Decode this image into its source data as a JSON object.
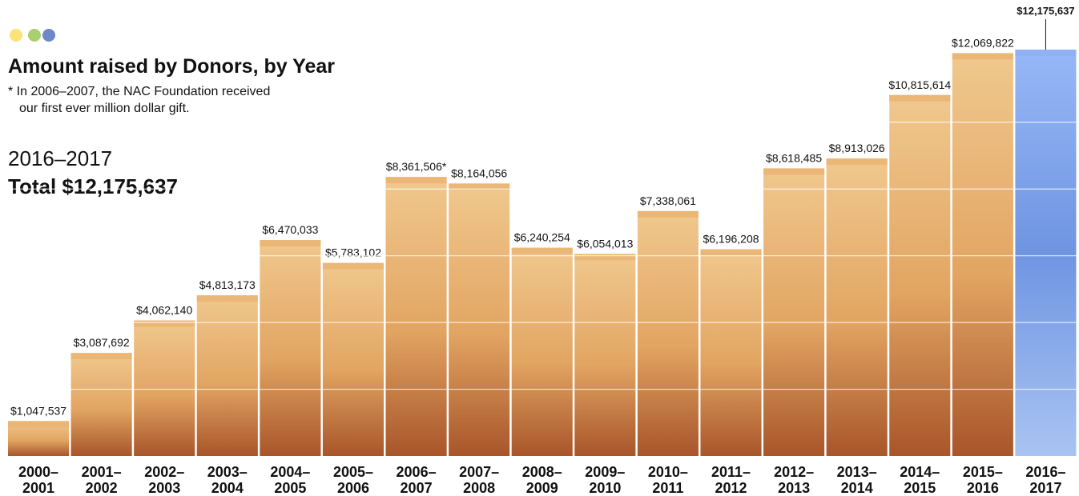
{
  "chart_data": {
    "type": "bar",
    "title": "Amount raised by Donors, by Year",
    "note": [
      "* In 2006–2007, the NAC Foundation received",
      "our first ever million dollar gift."
    ],
    "highlight": [
      "2016–2017",
      "Total $12,175,637"
    ],
    "categories": [
      [
        "2000–",
        "2001"
      ],
      [
        "2001–",
        "2002"
      ],
      [
        "2002–",
        "2003"
      ],
      [
        "2003–",
        "2004"
      ],
      [
        "2004–",
        "2005"
      ],
      [
        "2005–",
        "2006"
      ],
      [
        "2006–",
        "2007"
      ],
      [
        "2007–",
        "2008"
      ],
      [
        "2008–",
        "2009"
      ],
      [
        "2009–",
        "2010"
      ],
      [
        "2010–",
        "2011"
      ],
      [
        "2011–",
        "2012"
      ],
      [
        "2012–",
        "2013"
      ],
      [
        "2013–",
        "2014"
      ],
      [
        "2014–",
        "2015"
      ],
      [
        "2015–",
        "2016"
      ],
      [
        "2016–",
        "2017"
      ]
    ],
    "values": [
      1047537,
      3087692,
      4062140,
      4813173,
      6470033,
      5783102,
      8361506,
      8164056,
      6240254,
      6054013,
      7338061,
      6196208,
      8618485,
      8913026,
      10815614,
      12069822,
      12175637
    ],
    "value_labels": [
      "$1,047,537",
      "$3,087,692",
      "$4,062,140",
      "$4,813,173",
      "$6,470,033",
      "$5,783,102",
      "$8,361,506*",
      "$8,164,056",
      "$6,240,254",
      "$6,054,013",
      "$7,338,061",
      "$6,196,208",
      "$8,618,485",
      "$8,913,026",
      "$10,815,614",
      "$12,069,822",
      "$12,175,637"
    ],
    "color": "#e9b574",
    "highlight_color": "#8fb0f2",
    "ylim": [
      0,
      12200000
    ],
    "gridlines": [
      2000000,
      4000000,
      6000000,
      8000000,
      10000000
    ],
    "grid": true
  }
}
